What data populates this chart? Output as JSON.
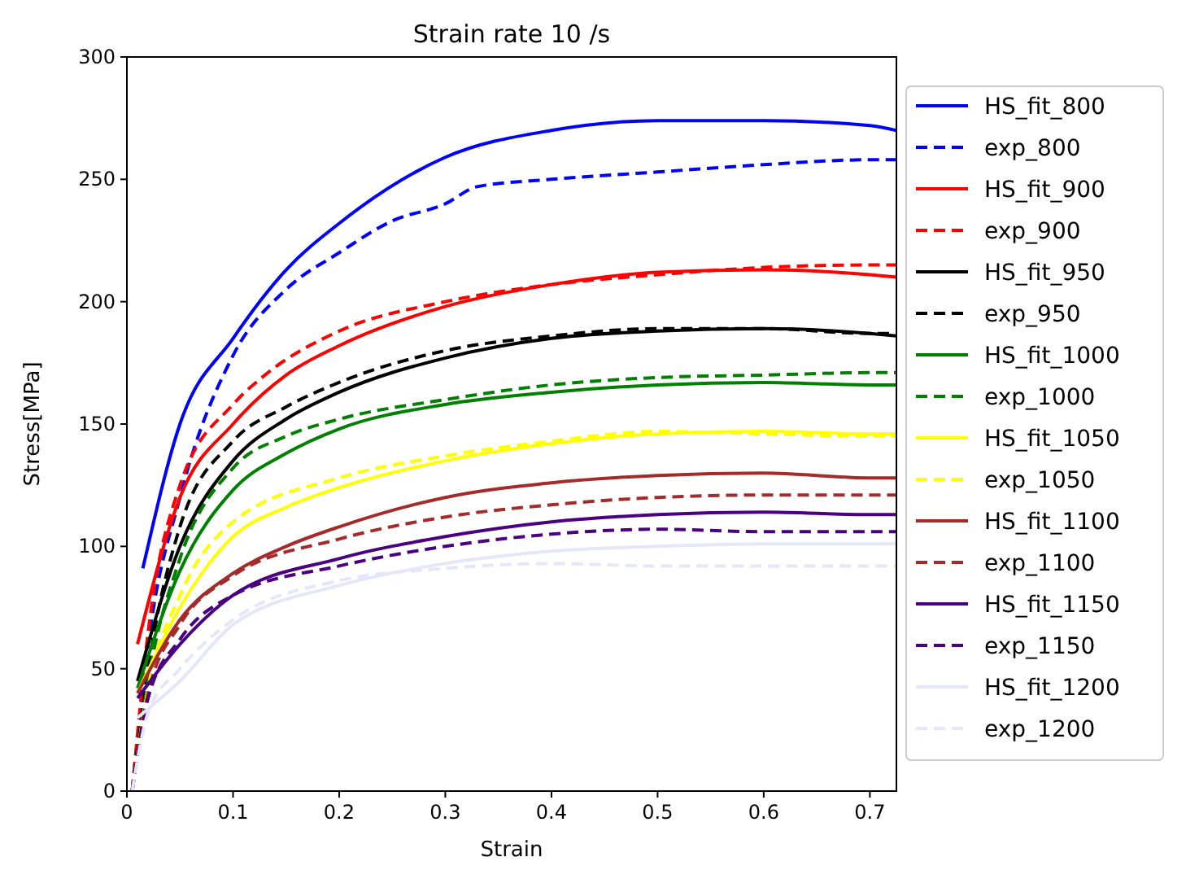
{
  "chart_data": {
    "type": "line",
    "title": "Strain rate 10 /s",
    "xlabel": "Strain",
    "ylabel": "Stress[MPa]",
    "xlim": [
      0,
      0.725
    ],
    "ylim": [
      0,
      300
    ],
    "xticks": [
      0,
      0.1,
      0.2,
      0.3,
      0.4,
      0.5,
      0.6,
      0.7
    ],
    "yticks": [
      0,
      50,
      100,
      150,
      200,
      250,
      300
    ],
    "grid": false,
    "legend": "right",
    "marker": "none",
    "series": [
      {
        "name": "HS_fit_800",
        "color": "#0000ff",
        "line_style": "solid",
        "x": [
          0.015,
          0.05,
          0.1,
          0.15,
          0.2,
          0.3,
          0.4,
          0.5,
          0.6,
          0.7,
          0.725
        ],
        "values": [
          91,
          150,
          185,
          213,
          232,
          259,
          270,
          274,
          274,
          272,
          270
        ]
      },
      {
        "name": "exp_800",
        "color": "#0000ff",
        "line_style": "dashed",
        "x": [
          0.005,
          0.02,
          0.05,
          0.1,
          0.15,
          0.2,
          0.25,
          0.3,
          0.33,
          0.4,
          0.5,
          0.6,
          0.7,
          0.725
        ],
        "values": [
          0,
          60,
          120,
          178,
          205,
          220,
          233,
          240,
          247,
          250,
          253,
          256,
          258,
          258
        ]
      },
      {
        "name": "HS_fit_900",
        "color": "#ff0000",
        "line_style": "solid",
        "x": [
          0.01,
          0.05,
          0.1,
          0.15,
          0.2,
          0.3,
          0.4,
          0.5,
          0.6,
          0.7,
          0.725
        ],
        "values": [
          60,
          120,
          150,
          170,
          182,
          198,
          207,
          212,
          213,
          211,
          210
        ]
      },
      {
        "name": "exp_900",
        "color": "#ff0000",
        "line_style": "dashed",
        "x": [
          0.005,
          0.02,
          0.05,
          0.1,
          0.13,
          0.2,
          0.3,
          0.4,
          0.5,
          0.6,
          0.7,
          0.725
        ],
        "values": [
          0,
          65,
          125,
          158,
          170,
          188,
          200,
          207,
          211,
          214,
          215,
          215
        ]
      },
      {
        "name": "HS_fit_950",
        "color": "#000000",
        "line_style": "solid",
        "x": [
          0.01,
          0.05,
          0.1,
          0.15,
          0.2,
          0.3,
          0.4,
          0.5,
          0.6,
          0.7,
          0.725
        ],
        "values": [
          45,
          100,
          135,
          152,
          163,
          177,
          185,
          188,
          189,
          187,
          186
        ]
      },
      {
        "name": "exp_950",
        "color": "#000000",
        "line_style": "dashed",
        "x": [
          0.005,
          0.02,
          0.05,
          0.1,
          0.15,
          0.2,
          0.3,
          0.4,
          0.5,
          0.6,
          0.7,
          0.725
        ],
        "values": [
          0,
          50,
          108,
          143,
          157,
          167,
          180,
          186,
          189,
          189,
          187,
          187
        ]
      },
      {
        "name": "HS_fit_1000",
        "color": "#008000",
        "line_style": "solid",
        "x": [
          0.01,
          0.05,
          0.1,
          0.15,
          0.2,
          0.3,
          0.4,
          0.5,
          0.6,
          0.7,
          0.725
        ],
        "values": [
          42,
          90,
          123,
          138,
          148,
          158,
          163,
          166,
          167,
          166,
          166
        ]
      },
      {
        "name": "exp_1000",
        "color": "#008000",
        "line_style": "dashed",
        "x": [
          0.005,
          0.02,
          0.05,
          0.1,
          0.15,
          0.2,
          0.3,
          0.4,
          0.5,
          0.6,
          0.7,
          0.725
        ],
        "values": [
          0,
          45,
          95,
          132,
          145,
          152,
          160,
          166,
          169,
          170,
          171,
          171
        ]
      },
      {
        "name": "HS_fit_1050",
        "color": "#ffff00",
        "line_style": "solid",
        "x": [
          0.01,
          0.05,
          0.1,
          0.15,
          0.2,
          0.3,
          0.4,
          0.5,
          0.6,
          0.7,
          0.725
        ],
        "values": [
          40,
          75,
          104,
          116,
          124,
          135,
          142,
          146,
          147,
          146,
          146
        ]
      },
      {
        "name": "exp_1050",
        "color": "#ffff00",
        "line_style": "dashed",
        "x": [
          0.005,
          0.02,
          0.05,
          0.1,
          0.2,
          0.3,
          0.4,
          0.5,
          0.6,
          0.7,
          0.725
        ],
        "values": [
          0,
          42,
          80,
          110,
          128,
          137,
          143,
          147,
          146,
          145,
          145
        ]
      },
      {
        "name": "HS_fit_1100",
        "color": "#a52a2a",
        "line_style": "solid",
        "x": [
          0.01,
          0.05,
          0.1,
          0.15,
          0.2,
          0.3,
          0.4,
          0.5,
          0.6,
          0.7,
          0.725
        ],
        "values": [
          40,
          70,
          89,
          100,
          108,
          120,
          126,
          129,
          130,
          128,
          128
        ]
      },
      {
        "name": "exp_1100",
        "color": "#a52a2a",
        "line_style": "dashed",
        "x": [
          0.005,
          0.02,
          0.05,
          0.1,
          0.2,
          0.3,
          0.4,
          0.5,
          0.6,
          0.7,
          0.725
        ],
        "values": [
          0,
          40,
          68,
          88,
          103,
          112,
          117,
          120,
          121,
          121,
          121
        ]
      },
      {
        "name": "HS_fit_1150",
        "color": "#4b0082",
        "line_style": "solid",
        "x": [
          0.01,
          0.05,
          0.1,
          0.2,
          0.3,
          0.4,
          0.5,
          0.6,
          0.7,
          0.725
        ],
        "values": [
          38,
          60,
          80,
          95,
          104,
          110,
          113,
          114,
          113,
          113
        ]
      },
      {
        "name": "exp_1150",
        "color": "#4b0082",
        "line_style": "dashed",
        "x": [
          0.005,
          0.02,
          0.05,
          0.1,
          0.2,
          0.3,
          0.4,
          0.5,
          0.6,
          0.7,
          0.725
        ],
        "values": [
          0,
          38,
          62,
          80,
          92,
          100,
          105,
          107,
          106,
          106,
          106
        ]
      },
      {
        "name": "HS_fit_1200",
        "color": "#e6e6fa",
        "line_style": "solid",
        "x": [
          0.01,
          0.05,
          0.1,
          0.2,
          0.3,
          0.4,
          0.5,
          0.6,
          0.7,
          0.725
        ],
        "values": [
          30,
          45,
          68,
          84,
          93,
          98,
          100,
          101,
          101,
          101
        ]
      },
      {
        "name": "exp_1200",
        "color": "#e6e6fa",
        "line_style": "dashed",
        "x": [
          0.005,
          0.02,
          0.05,
          0.1,
          0.2,
          0.3,
          0.4,
          0.5,
          0.6,
          0.7,
          0.725
        ],
        "values": [
          0,
          32,
          50,
          70,
          86,
          91,
          93,
          92,
          92,
          92,
          92
        ]
      }
    ]
  }
}
